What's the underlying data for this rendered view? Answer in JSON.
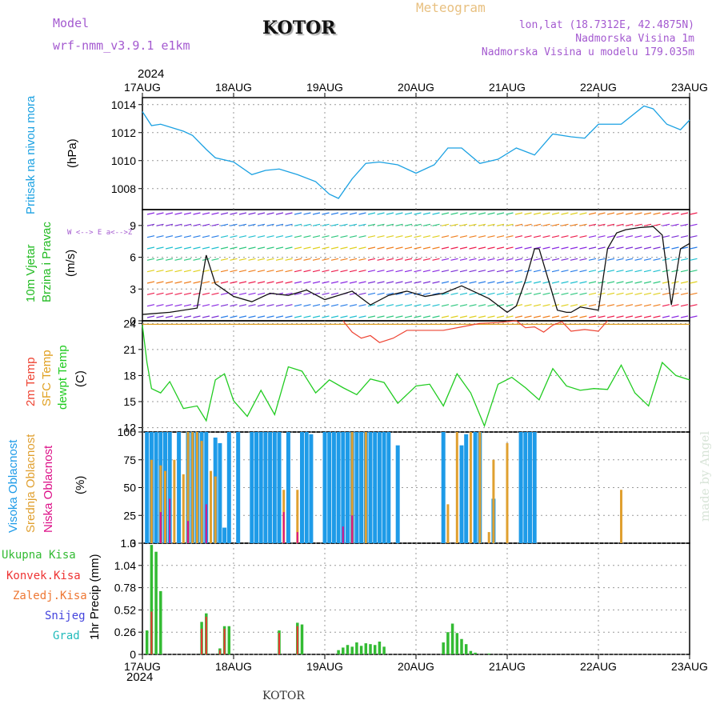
{
  "header": {
    "model_label": "Model",
    "model_name": "wrf-nmm_v3.9.1 e1km",
    "city": "KOTOR",
    "title": "Meteogram",
    "coords": "lon,lat (18.7312E, 42.4875N)",
    "altitude": "Nadmorska Visina 1m",
    "model_altitude": "Nadmorska Visina u modelu 179.035m"
  },
  "footer_city": "KOTOR",
  "watermark": "made by Angel",
  "colors": {
    "pressure": "#1ba1e2",
    "wind_title": "#22bb22",
    "temp2m": "#ee4433",
    "sfc": "#e0a020",
    "dewpt": "#22cc22",
    "high_cloud": "#1e9be8",
    "mid_cloud": "#e0a030",
    "low_cloud": "#dd1188",
    "rain_total": "#33bb33",
    "rain_conv": "#ee3333",
    "rain_frz": "#ee7733",
    "snow": "#4444dd",
    "hail": "#22bbbb"
  },
  "chart_data": [
    {
      "type": "line",
      "title": "Pritisak na nivou mora",
      "ylabel": "(hPa)",
      "year": "2024",
      "categories": [
        "17AUG",
        "18AUG",
        "19AUG",
        "20AUG",
        "21AUG",
        "22AUG",
        "23AUG"
      ],
      "ylim": [
        1006.5,
        1014.5
      ],
      "yticks": [
        "1008",
        "1010",
        "1012",
        "1014"
      ],
      "series": [
        {
          "name": "Pritisak",
          "x": [
            0,
            0.1,
            0.2,
            0.3,
            0.45,
            0.55,
            0.7,
            0.8,
            1.0,
            1.2,
            1.35,
            1.5,
            1.7,
            1.9,
            2.05,
            2.15,
            2.3,
            2.45,
            2.6,
            2.8,
            3.0,
            3.2,
            3.35,
            3.5,
            3.7,
            3.9,
            4.1,
            4.3,
            4.5,
            4.7,
            4.85,
            5.0,
            5.25,
            5.5,
            5.6,
            5.75,
            5.9,
            6.0
          ],
          "values": [
            1013.5,
            1012.5,
            1012.6,
            1012.4,
            1012.1,
            1011.8,
            1010.8,
            1010.2,
            1009.9,
            1009.0,
            1009.3,
            1009.4,
            1009.0,
            1008.5,
            1007.6,
            1007.3,
            1008.7,
            1009.8,
            1009.9,
            1009.7,
            1009.1,
            1009.7,
            1010.9,
            1010.9,
            1009.8,
            1010.1,
            1010.9,
            1010.4,
            1011.9,
            1011.7,
            1011.6,
            1012.6,
            1012.6,
            1013.9,
            1013.7,
            1012.6,
            1012.2,
            1012.9
          ]
        }
      ]
    },
    {
      "type": "line",
      "title": "10m Vjetar Brzina i Pravac",
      "ylabel": "(m/s)",
      "compass": "W <--> E  a<-->Z",
      "ylim": [
        0,
        10.5
      ],
      "yticks": [
        "0",
        "3",
        "6",
        "9"
      ],
      "series": [
        {
          "name": "wind speed",
          "x": [
            0,
            0.3,
            0.6,
            0.7,
            0.8,
            1.0,
            1.2,
            1.4,
            1.6,
            1.8,
            2.0,
            2.3,
            2.5,
            2.7,
            2.9,
            3.1,
            3.3,
            3.5,
            3.8,
            4.0,
            4.1,
            4.2,
            4.3,
            4.35,
            4.45,
            4.55,
            4.65,
            4.7,
            4.8,
            5.0,
            5.1,
            5.2,
            5.3,
            5.45,
            5.6,
            5.7,
            5.8,
            5.9,
            6.0
          ],
          "values": [
            0.6,
            0.8,
            1.2,
            6.2,
            3.5,
            2.3,
            1.8,
            2.6,
            2.4,
            2.9,
            2.0,
            2.8,
            1.5,
            2.4,
            2.8,
            2.3,
            2.6,
            3.3,
            2.1,
            0.8,
            1.4,
            3.8,
            6.8,
            6.8,
            3.9,
            1.0,
            0.8,
            0.8,
            1.3,
            1.0,
            6.8,
            8.3,
            8.6,
            8.8,
            8.9,
            8.1,
            1.5,
            6.8,
            7.3
          ]
        }
      ]
    },
    {
      "type": "line",
      "title": "2m Temp / SFC Temp / dewpt Temp",
      "series_labels": [
        "2m Temp",
        "SFC Temp",
        "dewpt Temp"
      ],
      "ylabel": "(C)",
      "ylim": [
        11.5,
        24.3
      ],
      "yticks": [
        "12",
        "15",
        "18",
        "21",
        "24"
      ],
      "series": [
        {
          "name": "SFC Temp",
          "x": [
            0,
            6
          ],
          "values": [
            23.9,
            23.9
          ]
        },
        {
          "name": "2m Temp",
          "x": [
            2.2,
            2.3,
            2.4,
            2.5,
            2.6,
            2.75,
            2.9,
            3.1,
            3.3,
            3.5,
            3.7,
            3.9,
            4.1,
            4.2,
            4.3,
            4.4,
            4.5,
            4.6,
            4.7,
            4.85,
            5.0,
            5.1
          ],
          "values": [
            24.3,
            23.0,
            22.3,
            22.6,
            21.8,
            22.3,
            23.2,
            23.2,
            23.2,
            23.6,
            24.0,
            24.1,
            24.3,
            23.5,
            23.6,
            23.0,
            23.8,
            24.2,
            23.1,
            23.3,
            23.1,
            24.3
          ]
        },
        {
          "name": "dewpt Temp",
          "x": [
            0,
            0.05,
            0.1,
            0.2,
            0.3,
            0.45,
            0.6,
            0.7,
            0.8,
            0.9,
            1.0,
            1.15,
            1.3,
            1.45,
            1.6,
            1.75,
            1.9,
            2.05,
            2.2,
            2.35,
            2.5,
            2.65,
            2.8,
            3.0,
            3.15,
            3.3,
            3.45,
            3.6,
            3.75,
            3.9,
            4.05,
            4.2,
            4.35,
            4.5,
            4.65,
            4.8,
            4.95,
            5.1,
            5.25,
            5.4,
            5.55,
            5.7,
            5.85,
            6.0
          ],
          "values": [
            23.8,
            19.5,
            16.5,
            16.0,
            17.3,
            14.2,
            14.5,
            12.8,
            17.5,
            18.2,
            15.1,
            13.3,
            16.3,
            13.5,
            19.0,
            18.5,
            16.0,
            17.5,
            16.6,
            15.8,
            17.6,
            17.2,
            14.8,
            16.8,
            17.0,
            14.5,
            18.2,
            16.0,
            12.2,
            17.0,
            17.8,
            16.6,
            15.2,
            18.8,
            16.8,
            16.3,
            16.5,
            16.4,
            19.2,
            16.0,
            14.5,
            19.5,
            18.0,
            17.5
          ]
        }
      ]
    },
    {
      "type": "bar",
      "title": "Visoka / Srednja / Niska Oblacnost",
      "series_labels": [
        "Visoka Oblacnost",
        "Srednja Oblacnost",
        "Niska Oblacnost"
      ],
      "ylabel": "(%)",
      "ylim": [
        0,
        100
      ],
      "yticks": [
        "0",
        "25",
        "50",
        "75",
        "100"
      ],
      "series": [
        {
          "name": "Visoka Oblacnost",
          "x": [
            0.05,
            0.1,
            0.15,
            0.2,
            0.25,
            0.3,
            0.4,
            0.5,
            0.55,
            0.6,
            0.65,
            0.7,
            0.8,
            0.85,
            0.9,
            0.95,
            1.05,
            1.2,
            1.25,
            1.3,
            1.35,
            1.4,
            1.45,
            1.5,
            1.6,
            1.75,
            1.8,
            1.85,
            2.0,
            2.05,
            2.1,
            2.15,
            2.2,
            2.25,
            2.3,
            2.35,
            2.4,
            2.45,
            2.5,
            2.55,
            2.6,
            2.65,
            2.7,
            2.8,
            3.3,
            3.5,
            3.55,
            3.65,
            3.7,
            3.85,
            4.15,
            4.2,
            4.25,
            4.3
          ],
          "values": [
            100,
            100,
            100,
            100,
            100,
            100,
            100,
            100,
            100,
            100,
            100,
            100,
            95,
            90,
            14,
            100,
            100,
            100,
            100,
            100,
            100,
            100,
            100,
            100,
            100,
            100,
            100,
            98,
            100,
            100,
            100,
            100,
            100,
            100,
            100,
            100,
            100,
            100,
            100,
            100,
            100,
            100,
            100,
            88,
            100,
            88,
            98,
            100,
            100,
            40,
            100,
            100,
            100,
            100
          ]
        },
        {
          "name": "Srednja Oblacnost",
          "x": [
            0.1,
            0.2,
            0.25,
            0.35,
            0.45,
            0.5,
            0.55,
            0.6,
            0.65,
            0.75,
            0.8,
            1.55,
            1.7,
            2.3,
            2.45,
            3.35,
            3.45,
            3.6,
            3.7,
            3.8,
            3.85,
            4.0,
            5.25
          ],
          "values": [
            75,
            70,
            65,
            75,
            62,
            100,
            100,
            100,
            92,
            65,
            60,
            48,
            48,
            100,
            100,
            35,
            100,
            100,
            100,
            10,
            75,
            90,
            48
          ]
        },
        {
          "name": "Niska Oblacnost",
          "x": [
            0.2,
            0.3,
            0.5,
            0.7,
            1.55,
            1.7,
            2.2,
            2.3
          ],
          "values": [
            28,
            40,
            20,
            35,
            28,
            10,
            15,
            25
          ]
        }
      ]
    },
    {
      "type": "bar",
      "title": "1hr Precip",
      "series_labels": [
        "Ukupna Kisa",
        "Konvek.Kisa",
        "Zaledj.Kisa",
        "Snijeg",
        "Grad"
      ],
      "ylabel": "1hr Precip (mm)",
      "year": "2024",
      "ylim": [
        0,
        1.3
      ],
      "yticks": [
        "0",
        "0.26",
        "0.52",
        "0.78",
        "1.04",
        "1.3"
      ],
      "series": [
        {
          "name": "Ukupna Kisa",
          "x": [
            0.05,
            0.1,
            0.15,
            0.2,
            0.65,
            0.7,
            0.85,
            0.9,
            0.95,
            1.5,
            1.7,
            1.75,
            2.15,
            2.2,
            2.25,
            2.3,
            2.35,
            2.4,
            2.45,
            2.5,
            2.55,
            2.6,
            2.65,
            3.3,
            3.35,
            3.4,
            3.45,
            3.5,
            3.55,
            3.6,
            3.65,
            3.8
          ],
          "values": [
            0.28,
            1.28,
            1.2,
            0.74,
            0.38,
            0.48,
            0.07,
            0.33,
            0.33,
            0.28,
            0.37,
            0.35,
            0.05,
            0.08,
            0.11,
            0.09,
            0.14,
            0.1,
            0.13,
            0.12,
            0.11,
            0.15,
            0.09,
            0.14,
            0.26,
            0.36,
            0.25,
            0.18,
            0.12,
            0.04,
            0.02,
            0.01
          ]
        },
        {
          "name": "Konvek.Kisa",
          "x": [
            0.1,
            0.65,
            0.7,
            0.85,
            0.9,
            1.5,
            1.7
          ],
          "values": [
            0.5,
            0.3,
            0.44,
            0.05,
            0.3,
            0.25,
            0.33
          ]
        }
      ]
    }
  ],
  "ticks": {
    "dates": [
      "17AUG",
      "18AUG",
      "19AUG",
      "20AUG",
      "21AUG",
      "22AUG",
      "23AUG"
    ],
    "year": "2024"
  }
}
